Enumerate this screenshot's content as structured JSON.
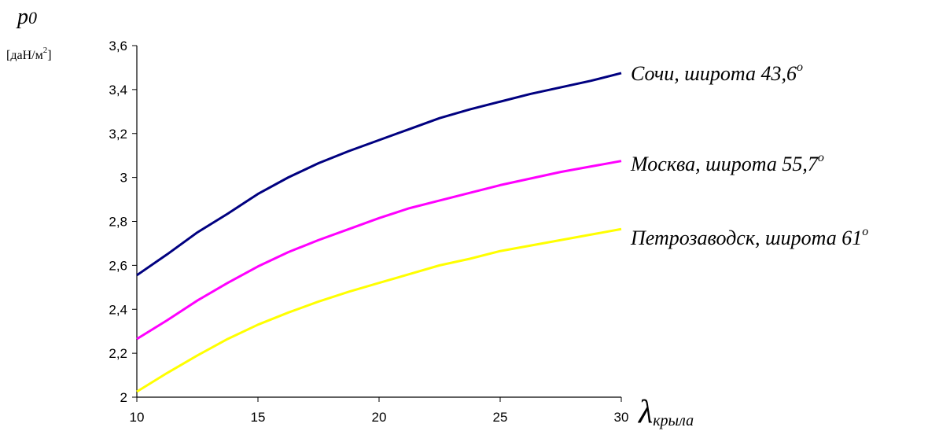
{
  "chart_data": {
    "type": "line",
    "ylabel": {
      "symbol": "p",
      "subscript": "0",
      "unit_prefix": "[даН/м",
      "unit_power": "2",
      "unit_suffix": "]"
    },
    "xlabel": {
      "symbol": "λ",
      "subscript": "крыла"
    },
    "xlim": [
      10,
      30
    ],
    "ylim": [
      2,
      3.6
    ],
    "x_ticks": [
      10,
      15,
      20,
      25,
      30
    ],
    "x_tick_labels": [
      "10",
      "15",
      "20",
      "25",
      "30"
    ],
    "y_ticks": [
      2,
      2.2,
      2.4,
      2.6,
      2.8,
      3,
      3.2,
      3.4,
      3.6
    ],
    "y_tick_labels": [
      "2",
      "2,2",
      "2,4",
      "2,6",
      "2,8",
      "3",
      "3,2",
      "3,4",
      "3,6"
    ],
    "grid": false,
    "x": [
      10,
      11.25,
      12.5,
      13.75,
      15,
      16.25,
      17.5,
      18.75,
      20,
      21.25,
      22.5,
      23.75,
      25,
      26.25,
      27.5,
      28.75,
      30
    ],
    "series": [
      {
        "name": "Сочи, широта 43,6",
        "name_superscript": "o",
        "color": "#000080",
        "values": [
          2.555,
          2.65,
          2.75,
          2.835,
          2.925,
          3.0,
          3.065,
          3.12,
          3.17,
          3.22,
          3.27,
          3.31,
          3.345,
          3.38,
          3.41,
          3.44,
          3.475
        ]
      },
      {
        "name": "Москва, широта 55,7",
        "name_superscript": "o",
        "color": "#ff00ff",
        "values": [
          2.265,
          2.35,
          2.44,
          2.52,
          2.595,
          2.66,
          2.715,
          2.765,
          2.815,
          2.86,
          2.895,
          2.93,
          2.965,
          2.995,
          3.025,
          3.05,
          3.075
        ]
      },
      {
        "name": "Петрозаводск, широта 61",
        "name_superscript": "o",
        "color": "#ffff00",
        "values": [
          2.025,
          2.11,
          2.19,
          2.265,
          2.33,
          2.385,
          2.435,
          2.48,
          2.52,
          2.56,
          2.6,
          2.63,
          2.665,
          2.69,
          2.715,
          2.74,
          2.765
        ]
      }
    ]
  }
}
